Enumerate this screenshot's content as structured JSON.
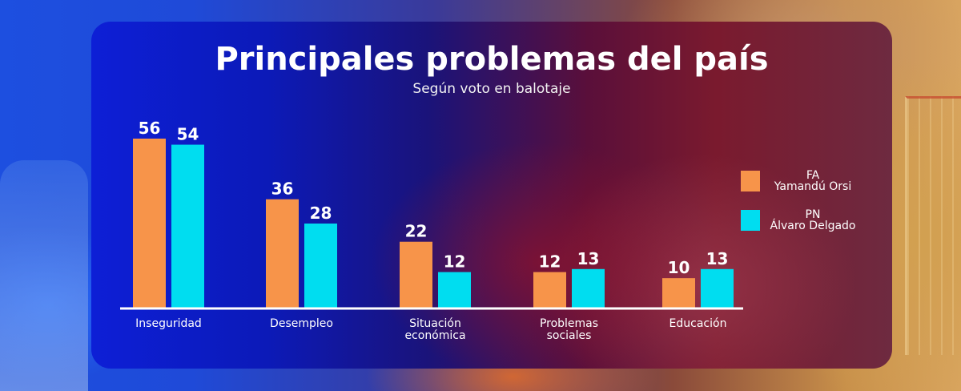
{
  "chart_data": {
    "type": "bar",
    "title": "Principales problemas del país",
    "subtitle": "Según voto en balotaje",
    "xlabel": "",
    "ylabel": "",
    "ylim": [
      0,
      60
    ],
    "grid": false,
    "legend_position": "right",
    "categories": [
      [
        "Inseguridad"
      ],
      [
        "Desempleo"
      ],
      [
        "Situación",
        "económica"
      ],
      [
        "Problemas",
        "sociales"
      ],
      [
        "Educación"
      ]
    ],
    "series": [
      {
        "name": [
          "FA",
          "Yamandú Orsi"
        ],
        "color": "#F7944A",
        "values": [
          56,
          36,
          22,
          12,
          10
        ]
      },
      {
        "name": [
          "PN",
          "Álvaro Delgado"
        ],
        "color": "#00DDF0",
        "values": [
          54,
          28,
          12,
          13,
          13
        ]
      }
    ]
  }
}
